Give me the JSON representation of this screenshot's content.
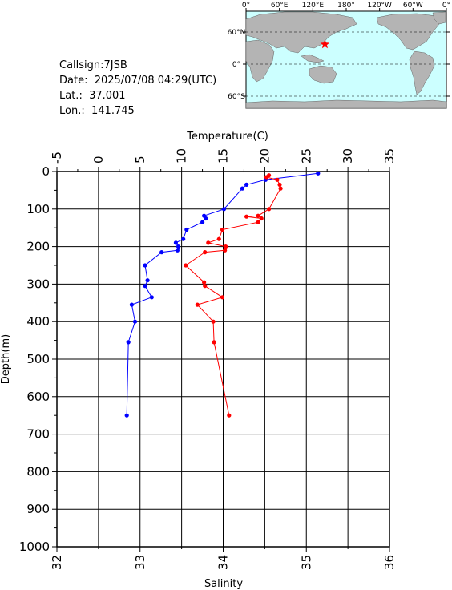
{
  "station": {
    "callsign_label": "Callsign:",
    "callsign": "7JSB",
    "date_label": "Date:",
    "date": "2025/07/08 04:29(UTC)",
    "lat_label": "Lat.:",
    "lat": "37.001",
    "lon_label": "Lon.:",
    "lon": "141.745"
  },
  "map": {
    "top_ticks": [
      "0°",
      "60°E",
      "120°E",
      "180°",
      "120°W",
      "60°W",
      "0°"
    ],
    "side_ticks": [
      "60°N",
      "0°",
      "60°S"
    ],
    "ocean_color": "#ccffff",
    "land_color": "#b4b4b4",
    "marker_color": "#ff0000",
    "marker_icon": "star-icon"
  },
  "chart_data": {
    "type": "line",
    "temp_axis": {
      "label": "Temperature(C)",
      "range": [
        -5,
        35
      ],
      "ticks": [
        -5,
        0,
        5,
        10,
        15,
        20,
        25,
        30,
        35
      ]
    },
    "salinity_axis": {
      "label": "Salinity",
      "range": [
        32,
        36
      ],
      "ticks": [
        32,
        33,
        34,
        35,
        36
      ]
    },
    "depth_axis": {
      "label": "Depth(m)",
      "range": [
        0,
        1000
      ],
      "ticks": [
        0,
        100,
        200,
        300,
        400,
        500,
        600,
        700,
        800,
        900,
        1000
      ]
    },
    "grid": true,
    "series": [
      {
        "color": "#0000ff",
        "axis": "temperature",
        "points": [
          [
            26.4,
            5
          ],
          [
            20.1,
            22
          ],
          [
            17.8,
            35
          ],
          [
            17.3,
            45
          ],
          [
            15.1,
            100
          ],
          [
            12.7,
            118
          ],
          [
            12.9,
            125
          ],
          [
            12.5,
            135
          ],
          [
            10.6,
            155
          ],
          [
            10.2,
            180
          ],
          [
            9.3,
            190
          ],
          [
            9.6,
            200
          ],
          [
            9.5,
            210
          ],
          [
            7.6,
            215
          ],
          [
            5.6,
            250
          ],
          [
            5.9,
            290
          ],
          [
            5.6,
            305
          ],
          [
            6.4,
            335
          ],
          [
            4.0,
            355
          ],
          [
            4.4,
            400
          ],
          [
            3.6,
            455
          ],
          [
            3.4,
            650
          ]
        ]
      },
      {
        "color": "#ff0000",
        "axis": "salinity",
        "points": [
          [
            34.55,
            10
          ],
          [
            34.52,
            15
          ],
          [
            34.65,
            22
          ],
          [
            34.68,
            35
          ],
          [
            34.69,
            45
          ],
          [
            34.55,
            100
          ],
          [
            34.42,
            118
          ],
          [
            34.28,
            120
          ],
          [
            34.46,
            125
          ],
          [
            34.42,
            135
          ],
          [
            33.99,
            155
          ],
          [
            33.95,
            180
          ],
          [
            33.82,
            190
          ],
          [
            34.03,
            200
          ],
          [
            34.02,
            210
          ],
          [
            33.78,
            215
          ],
          [
            33.55,
            250
          ],
          [
            33.77,
            295
          ],
          [
            33.78,
            305
          ],
          [
            33.99,
            335
          ],
          [
            33.69,
            355
          ],
          [
            33.88,
            400
          ],
          [
            33.89,
            455
          ],
          [
            34.07,
            650
          ]
        ]
      }
    ]
  }
}
